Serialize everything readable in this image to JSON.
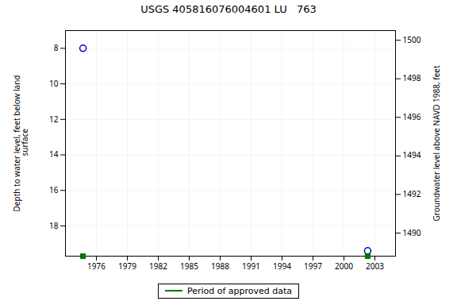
{
  "chart_data": {
    "type": "scatter",
    "title": "USGS 405816076004601 LU   763",
    "x": [
      1974.7,
      2002.3
    ],
    "series": [
      {
        "values": [
          8.0,
          19.4
        ],
        "color": "#0000cc",
        "marker": "circle"
      },
      {
        "name": "Period of approved data",
        "values": [
          19.7,
          19.7
        ],
        "color": "#007700",
        "marker": "square"
      }
    ],
    "xlim": [
      1973.0,
      2005.0
    ],
    "xticks": [
      1976,
      1979,
      1982,
      1985,
      1988,
      1991,
      1994,
      1997,
      2000,
      2003
    ],
    "ylim": [
      19.7,
      7.0
    ],
    "yticks": [
      8,
      10,
      12,
      14,
      16,
      18
    ],
    "y2lim": [
      1488.8,
      1500.5
    ],
    "y2ticks": [
      1490,
      1492,
      1494,
      1496,
      1498,
      1500
    ],
    "ylabel": "Depth to water level, feet below land\n surface",
    "y2label": "Groundwater level above NAVD 1988, feet",
    "grid": true,
    "legend": "bottom"
  }
}
